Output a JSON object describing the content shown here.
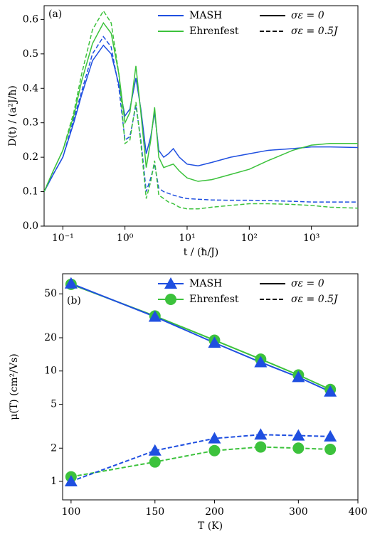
{
  "chart_data": [
    {
      "type": "line",
      "panel_label": "(a)",
      "xlabel": "t / (ħ/J)",
      "ylabel": "D(t) / (a²J/ħ)",
      "xscale": "log",
      "yscale": "linear",
      "xlim": [
        0.05,
        5600
      ],
      "ylim": [
        0,
        0.64
      ],
      "xticks": [
        {
          "value": 0.1,
          "label": "10⁻¹"
        },
        {
          "value": 1,
          "label": "10⁰"
        },
        {
          "value": 10,
          "label": "10¹"
        },
        {
          "value": 100,
          "label": "10²"
        },
        {
          "value": 1000,
          "label": "10³"
        }
      ],
      "yticks": [
        {
          "value": 0,
          "label": "0.0"
        },
        0.1,
        0.2,
        0.3,
        0.4,
        0.5,
        0.6
      ],
      "legend": {
        "corner": "upper right",
        "methods": [
          {
            "label": "MASH",
            "color": "#1f4fe0"
          },
          {
            "label": "Ehrenfest",
            "color": "#3cc23c"
          }
        ],
        "styles": [
          {
            "label": "σε = 0",
            "linestyle": "solid"
          },
          {
            "label": "σε = 0.5J",
            "linestyle": "dashed"
          }
        ]
      },
      "x": [
        0.05,
        0.07,
        0.1,
        0.15,
        0.2,
        0.3,
        0.45,
        0.6,
        0.8,
        1.0,
        1.2,
        1.5,
        1.8,
        2.2,
        2.6,
        3.0,
        3.5,
        4.2,
        5,
        6,
        7.5,
        10,
        15,
        25,
        50,
        100,
        200,
        500,
        1000,
        2000,
        5600
      ],
      "series": [
        {
          "color": "#1f4fe0",
          "linestyle": "solid",
          "values": [
            0.1,
            0.15,
            0.2,
            0.3,
            0.38,
            0.48,
            0.525,
            0.5,
            0.41,
            0.32,
            0.34,
            0.43,
            0.34,
            0.21,
            0.26,
            0.33,
            0.22,
            0.2,
            0.21,
            0.225,
            0.2,
            0.18,
            0.175,
            0.185,
            0.2,
            0.21,
            0.22,
            0.225,
            0.23,
            0.23,
            0.228
          ]
        },
        {
          "color": "#3cc23c",
          "linestyle": "solid",
          "values": [
            0.1,
            0.16,
            0.22,
            0.32,
            0.42,
            0.53,
            0.59,
            0.56,
            0.44,
            0.3,
            0.33,
            0.465,
            0.33,
            0.17,
            0.25,
            0.345,
            0.2,
            0.17,
            0.175,
            0.18,
            0.16,
            0.14,
            0.13,
            0.135,
            0.15,
            0.165,
            0.19,
            0.22,
            0.235,
            0.24,
            0.24
          ]
        },
        {
          "color": "#1f4fe0",
          "linestyle": "dashed",
          "values": [
            0.1,
            0.15,
            0.2,
            0.31,
            0.39,
            0.5,
            0.55,
            0.52,
            0.4,
            0.25,
            0.26,
            0.35,
            0.25,
            0.1,
            0.14,
            0.18,
            0.11,
            0.1,
            0.095,
            0.09,
            0.085,
            0.08,
            0.078,
            0.076,
            0.075,
            0.075,
            0.074,
            0.072,
            0.07,
            0.07,
            0.07
          ]
        },
        {
          "color": "#3cc23c",
          "linestyle": "dashed",
          "values": [
            0.1,
            0.16,
            0.22,
            0.33,
            0.44,
            0.57,
            0.625,
            0.59,
            0.44,
            0.24,
            0.25,
            0.36,
            0.24,
            0.08,
            0.13,
            0.19,
            0.09,
            0.08,
            0.07,
            0.065,
            0.055,
            0.05,
            0.05,
            0.055,
            0.06,
            0.065,
            0.065,
            0.063,
            0.06,
            0.055,
            0.052
          ]
        }
      ]
    },
    {
      "type": "line",
      "panel_label": "(b)",
      "xlabel": "T (K)",
      "ylabel": "μ(T) (cm²/Vs)",
      "xscale": "log",
      "yscale": "log",
      "xlim": [
        96,
        400
      ],
      "ylim": [
        0.68,
        76
      ],
      "xticks": [
        100,
        150,
        200,
        300,
        400
      ],
      "yticks": [
        1,
        2,
        5,
        10,
        20,
        50
      ],
      "legend": {
        "corner": "upper right",
        "methods": [
          {
            "label": "MASH",
            "color": "#1f4fe0",
            "marker": "triangle"
          },
          {
            "label": "Ehrenfest",
            "color": "#3cc23c",
            "marker": "circle"
          }
        ],
        "styles": [
          {
            "label": "σε = 0",
            "linestyle": "solid"
          },
          {
            "label": "σε = 0.5J",
            "linestyle": "dashed"
          }
        ]
      },
      "x": [
        100,
        150,
        200,
        250,
        300,
        350
      ],
      "series": [
        {
          "color": "#3cc23c",
          "linestyle": "solid",
          "marker": "circle",
          "values": [
            61,
            31.5,
            19,
            12.8,
            9.2,
            6.8
          ]
        },
        {
          "color": "#1f4fe0",
          "linestyle": "solid",
          "marker": "triangle",
          "values": [
            62,
            31,
            18,
            12,
            8.8,
            6.5
          ]
        },
        {
          "color": "#3cc23c",
          "linestyle": "dashed",
          "marker": "circle",
          "values": [
            1.1,
            1.5,
            1.9,
            2.05,
            2.0,
            1.95
          ]
        },
        {
          "color": "#1f4fe0",
          "linestyle": "dashed",
          "marker": "triangle",
          "values": [
            1.0,
            1.9,
            2.45,
            2.65,
            2.6,
            2.55
          ]
        }
      ]
    }
  ]
}
